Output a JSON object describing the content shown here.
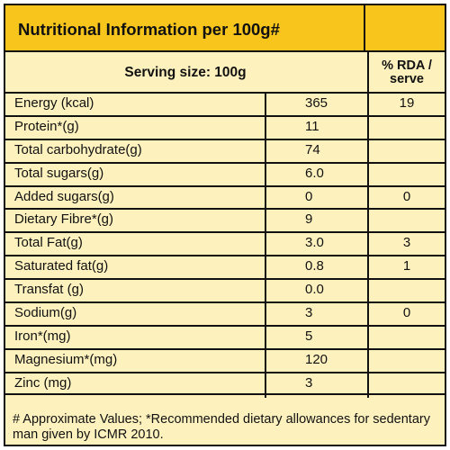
{
  "header": {
    "title": "Nutritional Information per 100g#"
  },
  "serving": {
    "label": "Serving size: 100g",
    "rda_label": "% RDA / serve"
  },
  "rows": [
    {
      "name": "Energy (kcal)",
      "value": "365",
      "rda": "19"
    },
    {
      "name": "Protein*(g)",
      "value": "11",
      "rda": ""
    },
    {
      "name": "Total carbohydrate(g)",
      "value": "74",
      "rda": ""
    },
    {
      "name": "Total sugars(g)",
      "value": "6.0",
      "rda": ""
    },
    {
      "name": "Added sugars(g)",
      "value": "0",
      "rda": "0"
    },
    {
      "name": "Dietary Fibre*(g)",
      "value": "9",
      "rda": ""
    },
    {
      "name": "Total Fat(g)",
      "value": "3.0",
      "rda": "3"
    },
    {
      "name": "Saturated fat(g)",
      "value": "0.8",
      "rda": "1"
    },
    {
      "name": "Transfat (g)",
      "value": "0.0",
      "rda": ""
    },
    {
      "name": "Sodium(g)",
      "value": "3",
      "rda": "0"
    },
    {
      "name": "Iron*(mg)",
      "value": "5",
      "rda": ""
    },
    {
      "name": "Magnesium*(mg)",
      "value": "120",
      "rda": ""
    },
    {
      "name": "Zinc (mg)",
      "value": "3",
      "rda": ""
    }
  ],
  "footnote": "# Approximate Values; *Recommended dietary allowances for sedentary man given by ICMR 2010.",
  "colors": {
    "header_bg": "#f7c51c",
    "body_bg": "#fdf2be",
    "border": "#111111"
  }
}
